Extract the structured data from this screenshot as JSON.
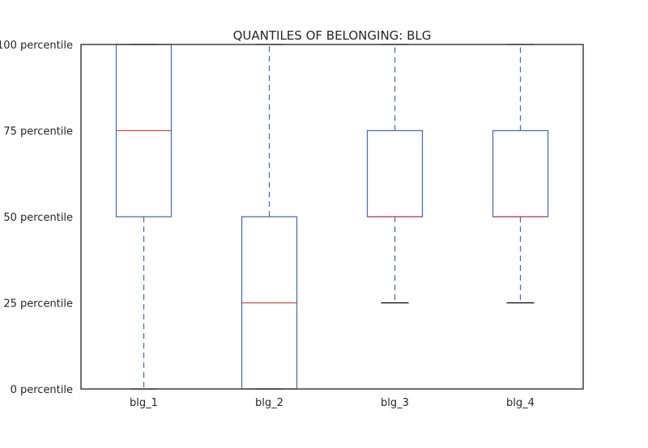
{
  "chart_data": {
    "type": "box",
    "title": "QUANTILES OF BELONGING: BLG",
    "xlabel": "",
    "ylabel": "",
    "categories": [
      "blg_1",
      "blg_2",
      "blg_3",
      "blg_4"
    ],
    "y_ticks": [
      {
        "value": 0,
        "label": "0 percentile"
      },
      {
        "value": 25,
        "label": "25 percentile"
      },
      {
        "value": 50,
        "label": "50 percentile"
      },
      {
        "value": 75,
        "label": "75 percentile"
      },
      {
        "value": 100,
        "label": "100 percentile"
      }
    ],
    "ylim": [
      0,
      100
    ],
    "boxes": [
      {
        "category": "blg_1",
        "whisker_low": 0,
        "q1": 50,
        "median": 75,
        "q3": 100,
        "whisker_high": 100
      },
      {
        "category": "blg_2",
        "whisker_low": 0,
        "q1": 0,
        "median": 25,
        "q3": 50,
        "whisker_high": 100
      },
      {
        "category": "blg_3",
        "whisker_low": 25,
        "q1": 50,
        "median": 50,
        "q3": 75,
        "whisker_high": 100
      },
      {
        "category": "blg_4",
        "whisker_low": 25,
        "q1": 50,
        "median": 50,
        "q3": 75,
        "whisker_high": 100
      }
    ],
    "grid": false,
    "colors": {
      "box": "#4c72b0",
      "median": "#c44e52",
      "cap": "#000000",
      "axes": "#333333",
      "text": "#262626"
    }
  }
}
